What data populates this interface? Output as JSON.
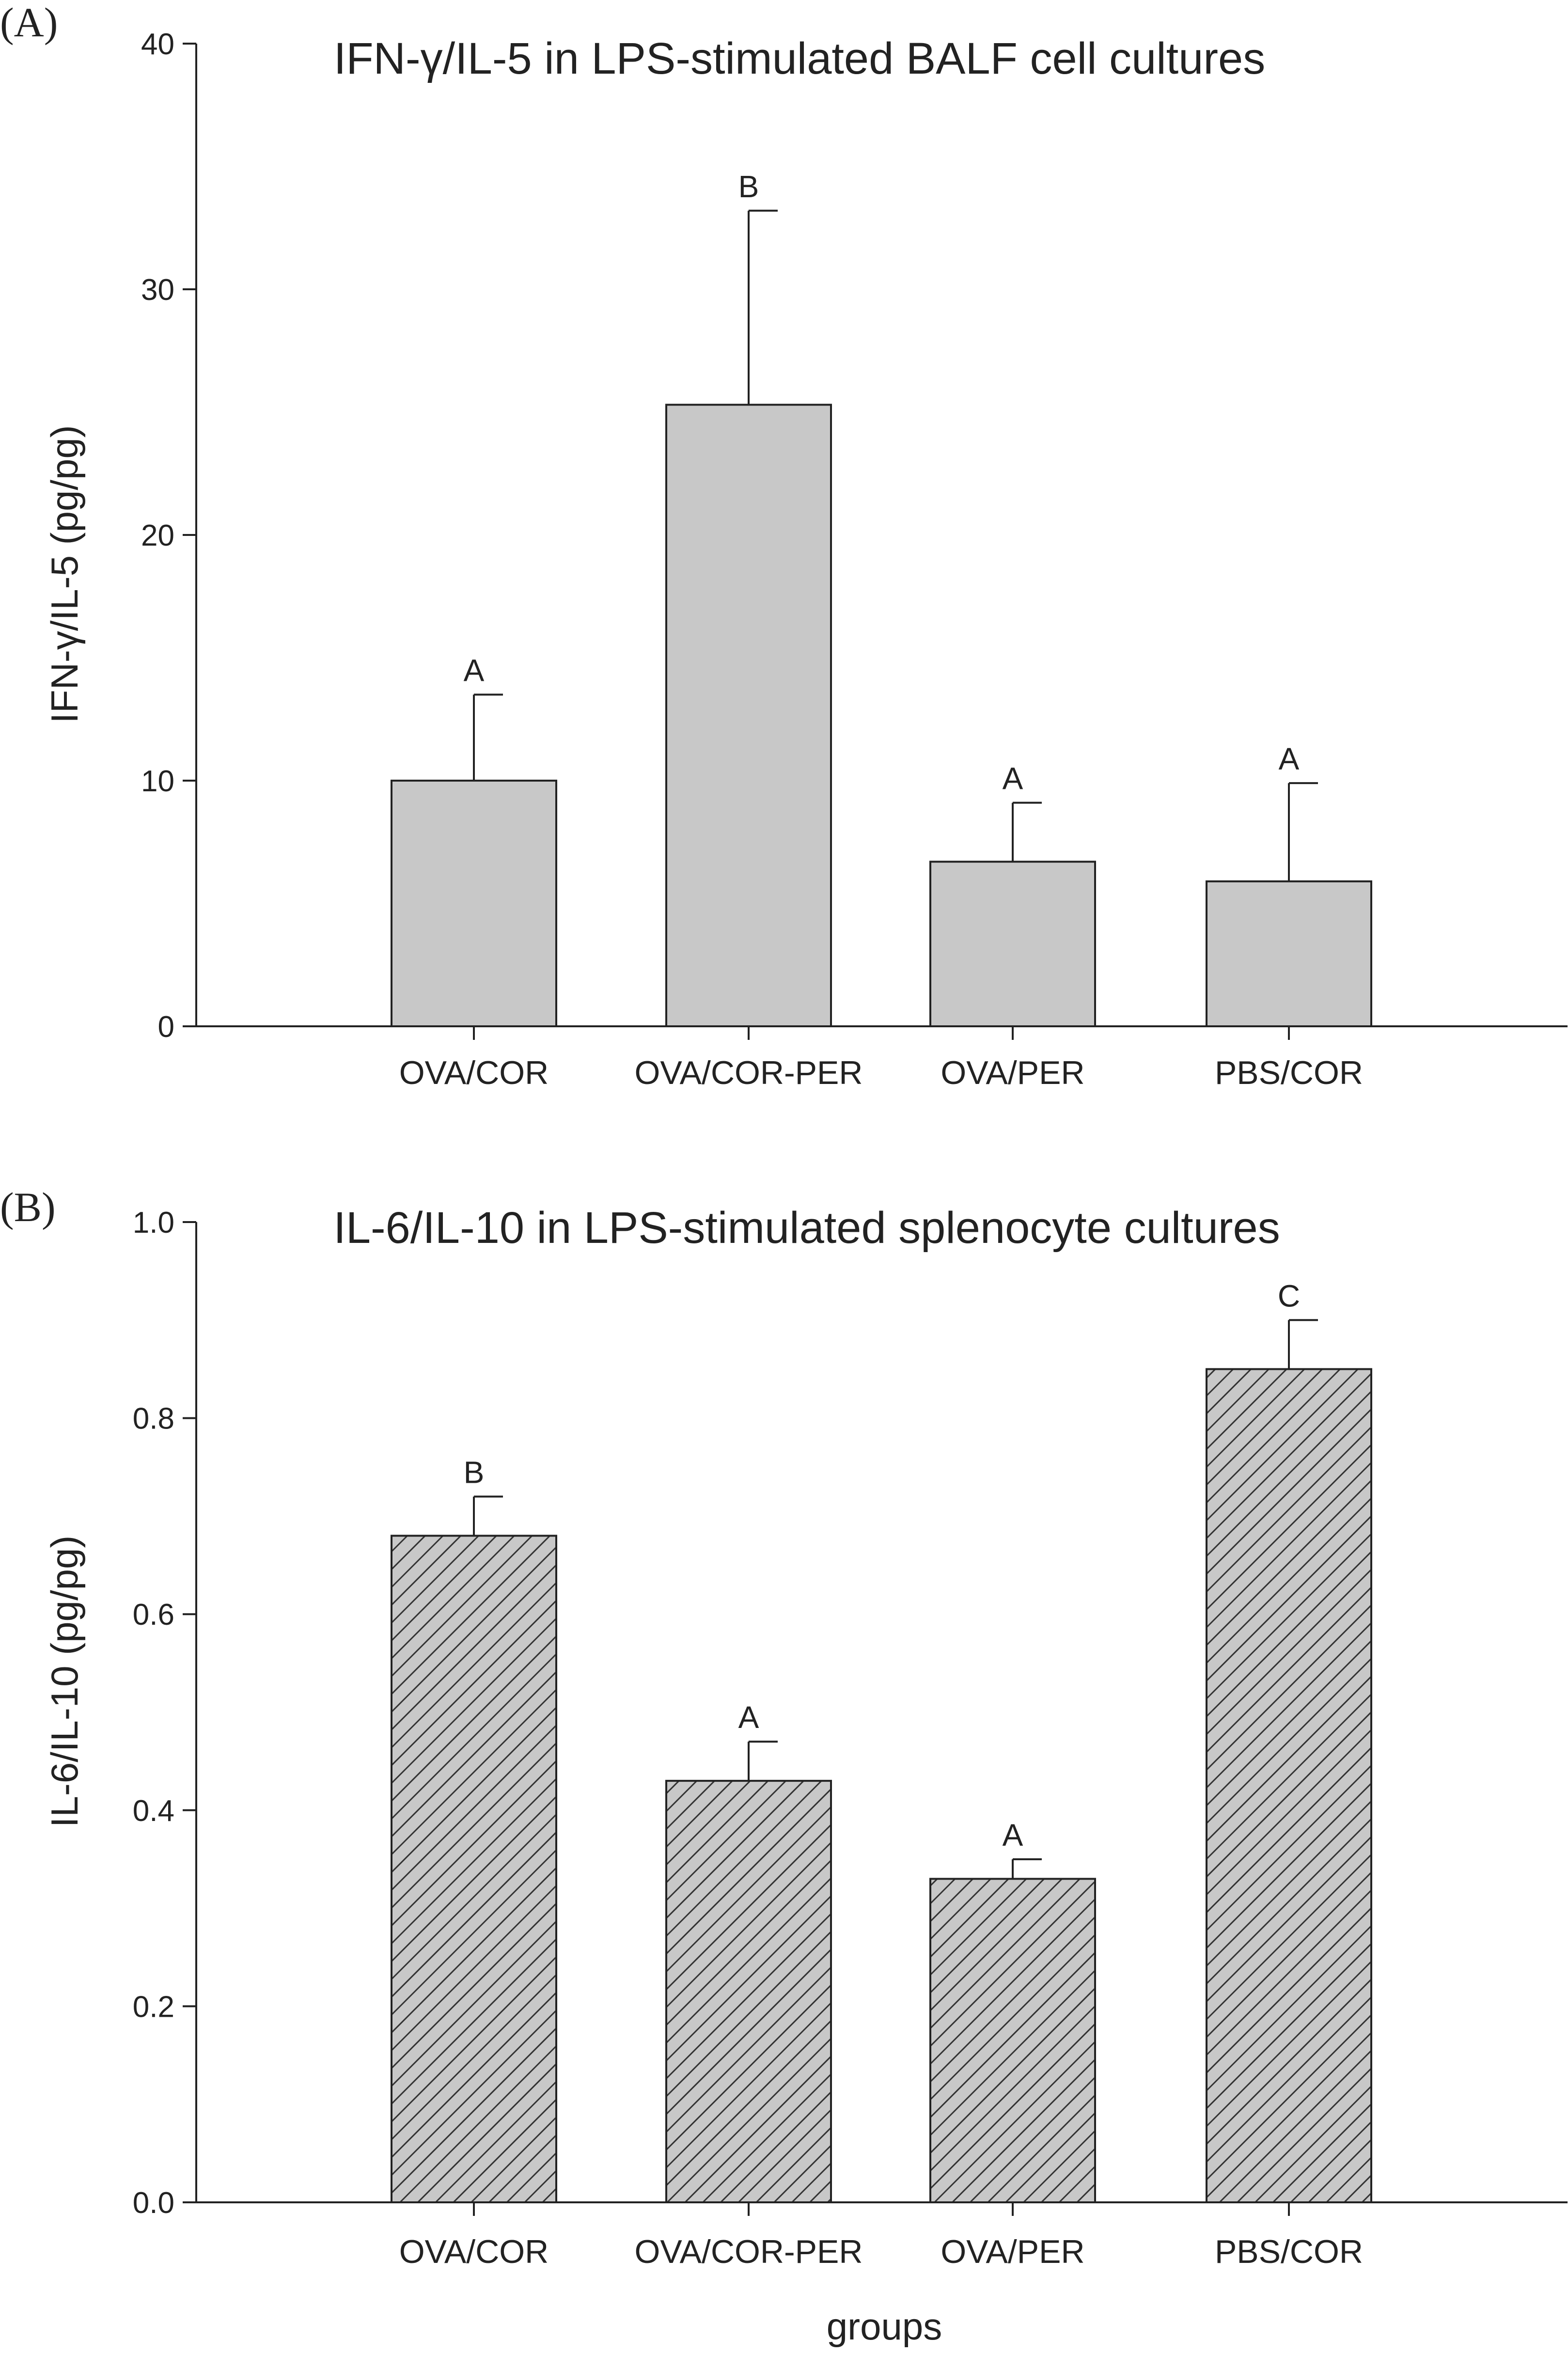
{
  "chart_data": [
    {
      "panel": "(A)",
      "type": "bar",
      "title": "IFN-γ/IL-5 in LPS-stimulated BALF cell cultures",
      "ylabel": "IFN-γ/IL-5 (pg/pg)",
      "xlabel": "",
      "ylim": [
        0,
        40
      ],
      "yticks": [
        "0",
        "10",
        "20",
        "30",
        "40"
      ],
      "categories": [
        "OVA/COR",
        "OVA/COR-PER",
        "OVA/PER",
        "PBS/COR"
      ],
      "values": [
        10.0,
        25.3,
        6.7,
        5.9
      ],
      "errors": [
        3.5,
        7.9,
        2.4,
        4.0
      ],
      "significance": [
        "A",
        "B",
        "A",
        "A"
      ],
      "bar_fill": "#c8c8c8",
      "pattern": "solid"
    },
    {
      "panel": "(B)",
      "type": "bar",
      "title": "IL-6/IL-10 in LPS-stimulated splenocyte cultures",
      "ylabel": "IL-6/IL-10 (pg/pg)",
      "xlabel": "groups",
      "ylim": [
        0,
        1.0
      ],
      "yticks": [
        "0.0",
        "0.2",
        "0.4",
        "0.6",
        "0.8",
        "1.0"
      ],
      "categories": [
        "OVA/COR",
        "OVA/COR-PER",
        "OVA/PER",
        "PBS/COR"
      ],
      "values": [
        0.68,
        0.43,
        0.33,
        0.85
      ],
      "errors": [
        0.04,
        0.04,
        0.02,
        0.05
      ],
      "significance": [
        "B",
        "A",
        "A",
        "C"
      ],
      "bar_fill": "#c8c8c8",
      "pattern": "diagonal-hatch"
    }
  ]
}
